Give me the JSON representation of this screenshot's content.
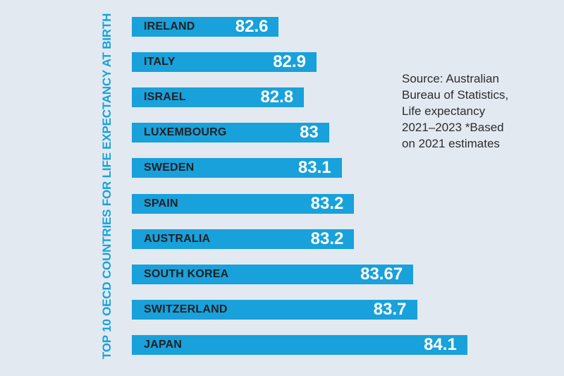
{
  "colors": {
    "background": "#E3E9F1",
    "bar": "#18A1DB",
    "title_text": "#18A1DB",
    "country_label_text": "#231F20",
    "value_label_text": "#FFFFFF",
    "source_text": "#2D2D2D"
  },
  "chart_data": {
    "type": "bar",
    "orientation": "horizontal",
    "title": "TOP 10 OECD COUNTRIES FOR LIFE EXPECTANCY AT BIRTH",
    "categories": [
      "IRELAND",
      "ITALY",
      "ISRAEL",
      "LUXEMBOURG",
      "SWEDEN",
      "SPAIN",
      "AUSTRALIA",
      "SOUTH KOREA",
      "SWITZERLAND",
      "JAPAN"
    ],
    "values": [
      82.6,
      82.9,
      82.8,
      83,
      83.1,
      83.2,
      83.2,
      83.67,
      83.7,
      84.1
    ],
    "value_labels": [
      "82.6",
      "82.9",
      "82.8",
      "83",
      "83.1",
      "83.2",
      "83.2",
      "83.67",
      "83.7",
      "84.1"
    ],
    "xlabel": "",
    "ylabel": "",
    "xlim": [
      81.43,
      84.87
    ],
    "grid": false,
    "legend": false,
    "source_note": {
      "lines": [
        "Source: Australian",
        "Bureau of Statistics,",
        "Life expectancy",
        "2021–2023 *Based",
        "on 2021 estimates"
      ]
    }
  }
}
